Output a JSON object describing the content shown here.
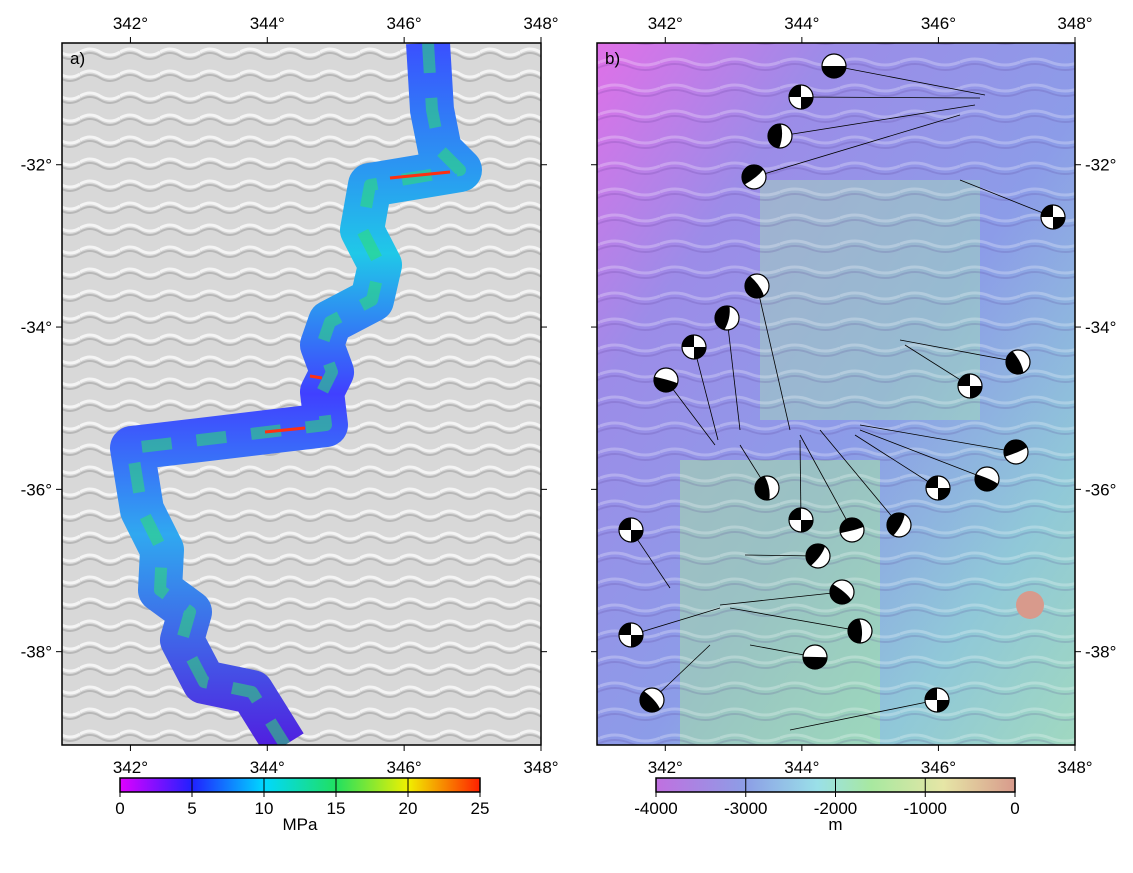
{
  "panels": [
    {
      "label": "a)",
      "xlim": [
        341,
        348
      ],
      "ylim": [
        -39.15,
        -30.5
      ],
      "xticks": [
        {
          "value": 342,
          "label": "342°"
        },
        {
          "value": 344,
          "label": "344°"
        },
        {
          "value": 346,
          "label": "346°"
        },
        {
          "value": 348,
          "label": "348°"
        }
      ],
      "yticks": [
        {
          "value": -32,
          "label": "-32°"
        },
        {
          "value": -34,
          "label": "-34°"
        },
        {
          "value": -36,
          "label": "-36°"
        },
        {
          "value": -38,
          "label": "-38°"
        }
      ]
    },
    {
      "label": "b)",
      "xlim": [
        341,
        348
      ],
      "ylim": [
        -39.15,
        -30.5
      ],
      "xticks": [
        {
          "value": 342,
          "label": "342°"
        },
        {
          "value": 344,
          "label": "344°"
        },
        {
          "value": 346,
          "label": "346°"
        },
        {
          "value": 348,
          "label": "348°"
        }
      ],
      "yticks": [
        {
          "value": -32,
          "label": "-32°"
        },
        {
          "value": -34,
          "label": "-34°"
        },
        {
          "value": -36,
          "label": "-36°"
        },
        {
          "value": -38,
          "label": "-38°"
        }
      ]
    }
  ],
  "colorbars": [
    {
      "range": [
        0,
        25
      ],
      "ticks": [
        0,
        5,
        10,
        15,
        20,
        25
      ],
      "label": "MPa"
    },
    {
      "range": [
        -4000,
        0
      ],
      "ticks": [
        -4000,
        -3000,
        -2000,
        -1000,
        0
      ],
      "label": "m"
    }
  ]
}
